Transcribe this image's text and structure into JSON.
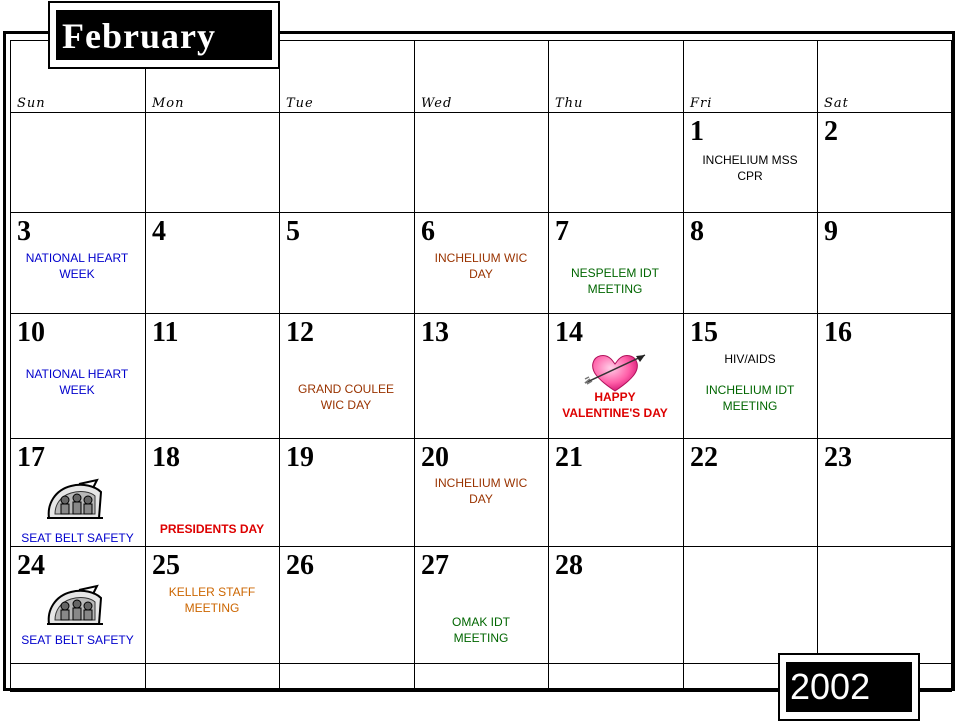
{
  "month": "February",
  "year": "2002",
  "days_of_week": [
    "Sun",
    "Mon",
    "Tue",
    "Wed",
    "Thu",
    "Fri",
    "Sat"
  ],
  "colors": {
    "blue": "#0000cc",
    "brown": "#993300",
    "green": "#006600",
    "red": "#dd0000",
    "orange": "#cc6600",
    "black": "#000000"
  },
  "weeks": [
    [
      {
        "day": ""
      },
      {
        "day": ""
      },
      {
        "day": ""
      },
      {
        "day": ""
      },
      {
        "day": ""
      },
      {
        "day": "1",
        "events": [
          {
            "text": "INCHELIUM MSS CPR",
            "color": "black",
            "top": 40
          }
        ]
      },
      {
        "day": "2"
      }
    ],
    [
      {
        "day": "3",
        "events": [
          {
            "text": "NATIONAL HEART WEEK",
            "color": "blue",
            "top": 38
          }
        ]
      },
      {
        "day": "4"
      },
      {
        "day": "5"
      },
      {
        "day": "6",
        "events": [
          {
            "text": "INCHELIUM WIC DAY",
            "color": "brown",
            "top": 38
          }
        ]
      },
      {
        "day": "7",
        "events": [
          {
            "text": "NESPELEM IDT MEETING",
            "color": "green",
            "top": 53
          }
        ]
      },
      {
        "day": "8"
      },
      {
        "day": "9"
      }
    ],
    [
      {
        "day": "10",
        "events": [
          {
            "text": "NATIONAL HEART WEEK",
            "color": "blue",
            "top": 53
          }
        ]
      },
      {
        "day": "11"
      },
      {
        "day": "12",
        "events": [
          {
            "text": "GRAND COULEE WIC DAY",
            "color": "brown",
            "top": 68
          }
        ]
      },
      {
        "day": "13"
      },
      {
        "day": "14",
        "clipart": "heart-arrow",
        "events": [
          {
            "text": "HAPPY VALENTINE'S DAY",
            "color": "red",
            "top": 76,
            "bold": true
          }
        ]
      },
      {
        "day": "15",
        "events": [
          {
            "text": "HIV/AIDS",
            "color": "black",
            "top": 38
          },
          {
            "text": "INCHELIUM IDT MEETING",
            "color": "green",
            "top": 69
          }
        ]
      },
      {
        "day": "16"
      }
    ],
    [
      {
        "day": "17",
        "clipart": "car-occupants",
        "events": [
          {
            "text": "SEAT BELT SAFETY",
            "color": "blue",
            "top": 92
          }
        ]
      },
      {
        "day": "18",
        "events": [
          {
            "text": "PRESIDENTS DAY",
            "color": "red",
            "top": 83,
            "bold": true
          }
        ]
      },
      {
        "day": "19"
      },
      {
        "day": "20",
        "events": [
          {
            "text": "INCHELIUM WIC DAY",
            "color": "brown",
            "top": 37
          }
        ]
      },
      {
        "day": "21"
      },
      {
        "day": "22"
      },
      {
        "day": "23"
      }
    ],
    [
      {
        "day": "24",
        "clipart": "car-occupants",
        "events": [
          {
            "text": "SEAT BELT SAFETY",
            "color": "blue",
            "top": 86
          }
        ]
      },
      {
        "day": "25",
        "events": [
          {
            "text": "KELLER STAFF MEETING",
            "color": "orange",
            "top": 38
          }
        ]
      },
      {
        "day": "26"
      },
      {
        "day": "27",
        "events": [
          {
            "text": "OMAK IDT MEETING",
            "color": "green",
            "top": 68
          }
        ]
      },
      {
        "day": "28"
      },
      {
        "day": ""
      },
      {
        "day": ""
      }
    ],
    [
      {
        "day": ""
      },
      {
        "day": ""
      },
      {
        "day": ""
      },
      {
        "day": ""
      },
      {
        "day": ""
      },
      {
        "day": ""
      },
      {
        "day": ""
      }
    ]
  ]
}
